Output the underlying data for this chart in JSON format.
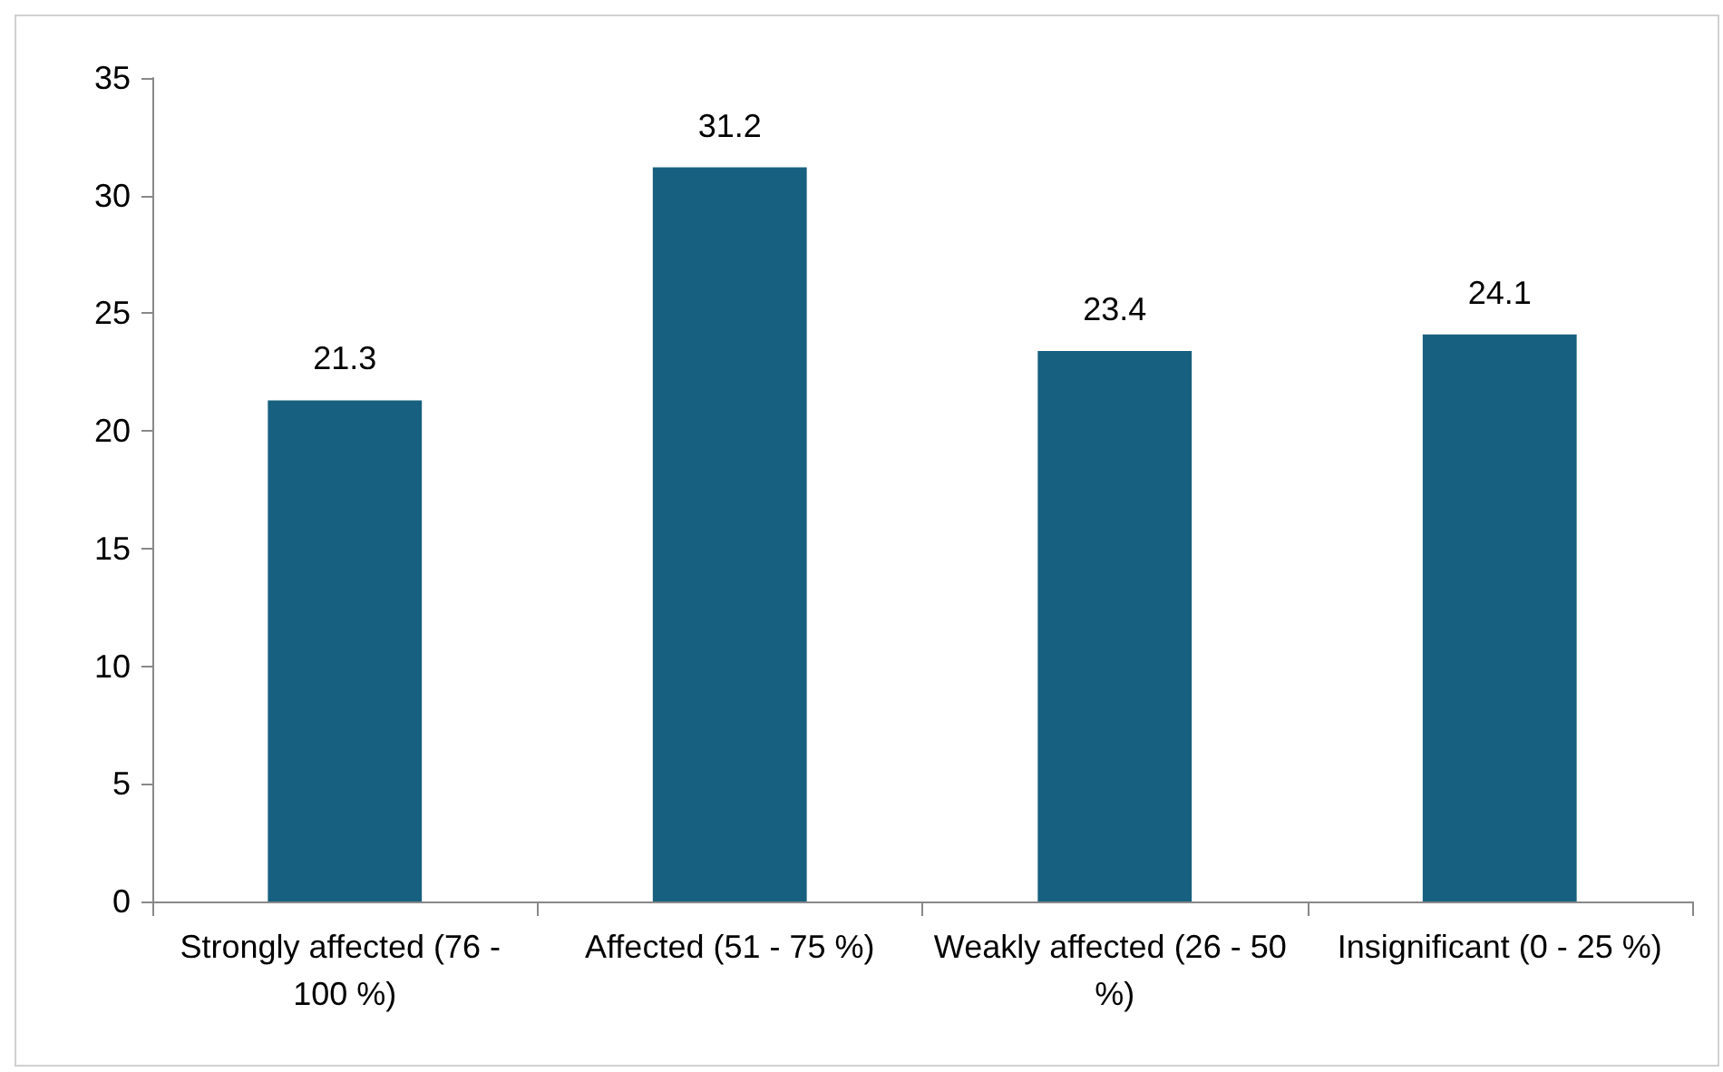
{
  "chart_data": {
    "type": "bar",
    "categories": [
      "Strongly affected (76 - 100 %)",
      "Affected (51 - 75 %)",
      "Weakly affected (26 - 50 %)",
      "Insignificant (0 - 25 %)"
    ],
    "values": [
      21.3,
      31.2,
      23.4,
      24.1
    ],
    "color": "#17607f",
    "ylim": [
      0,
      35
    ],
    "yticks": [
      0,
      5,
      10,
      15,
      20,
      25,
      30,
      35
    ],
    "grid": false,
    "data_labels": true
  }
}
